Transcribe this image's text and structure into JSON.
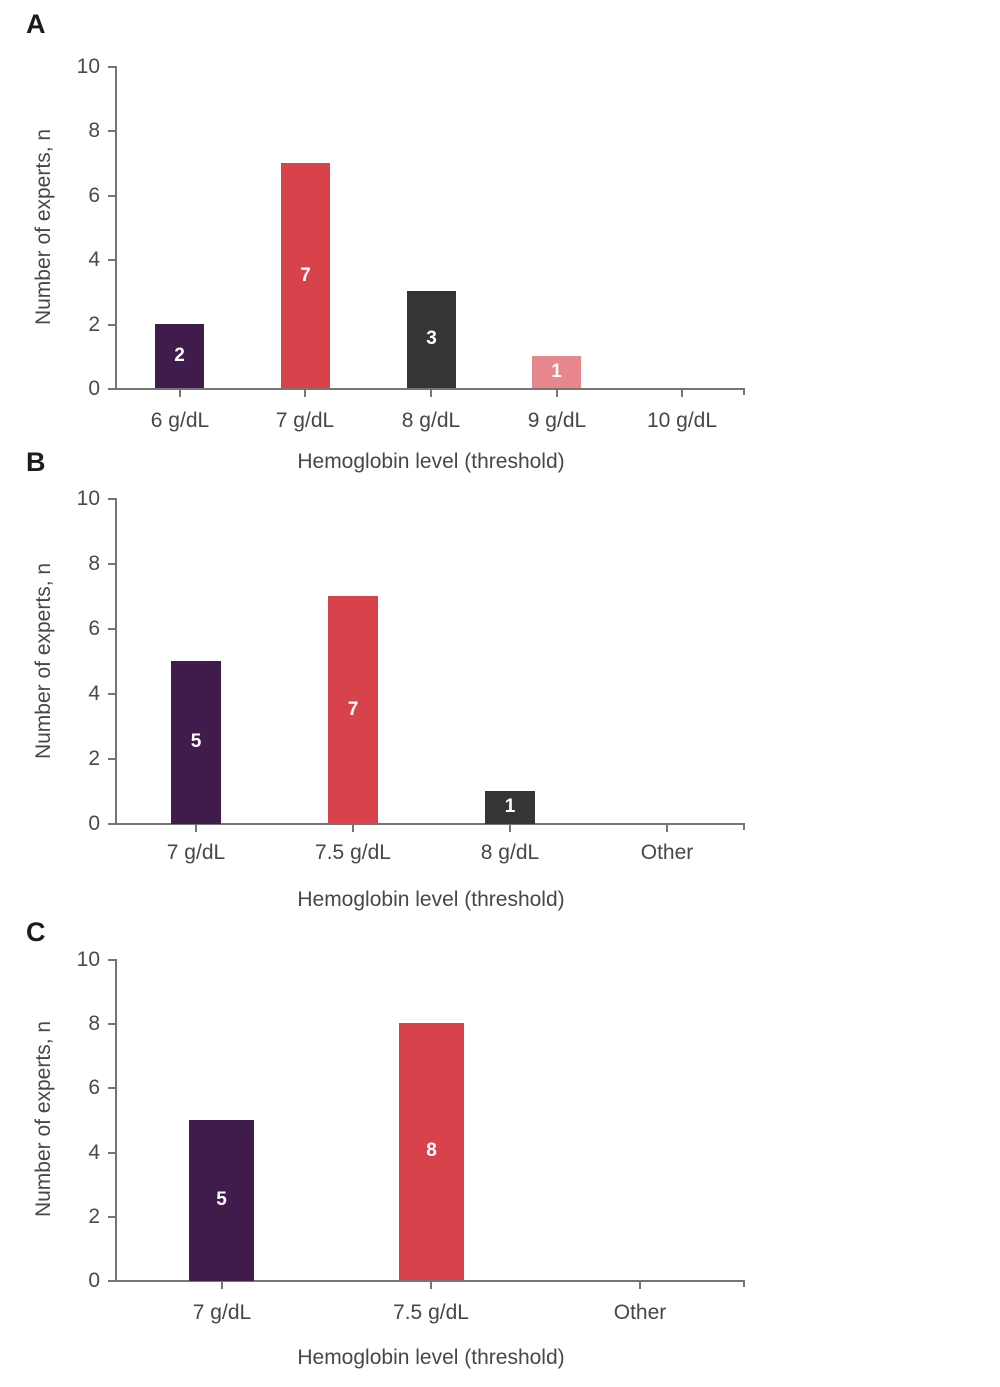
{
  "figure_colors": {
    "purple": "#3f1c4c",
    "red": "#d8434b",
    "charcoal": "#363436",
    "pink": "#e8868d",
    "axis": "#757575",
    "text": "#474747",
    "bar_label": "#ffffff"
  },
  "chart_data": [
    {
      "panel_label": "A",
      "type": "bar",
      "title": "",
      "xlabel": "Hemoglobin level (threshold)",
      "ylabel": "Number of experts, n",
      "ylim": [
        0,
        10
      ],
      "yticks": [
        0,
        2,
        4,
        6,
        8,
        10
      ],
      "grid": false,
      "legend": "none",
      "categories": [
        "6 g/dL",
        "7 g/dL",
        "8 g/dL",
        "9 g/dL",
        "10 g/dL"
      ],
      "values": [
        2,
        7,
        3,
        1,
        0
      ],
      "bar_labels": [
        "2",
        "7",
        "3",
        "1",
        ""
      ],
      "bar_colors": [
        "#3f1c4c",
        "#d8434b",
        "#363436",
        "#e8868d",
        "#cccccc"
      ]
    },
    {
      "panel_label": "B",
      "type": "bar",
      "title": "",
      "xlabel": "Hemoglobin level (threshold)",
      "ylabel": "Number of experts, n",
      "ylim": [
        0,
        10
      ],
      "yticks": [
        0,
        2,
        4,
        6,
        8,
        10
      ],
      "grid": false,
      "legend": "none",
      "categories": [
        "7 g/dL",
        "7.5 g/dL",
        "8 g/dL",
        "Other"
      ],
      "values": [
        5,
        7,
        1,
        0
      ],
      "bar_labels": [
        "5",
        "7",
        "1",
        ""
      ],
      "bar_colors": [
        "#3f1c4c",
        "#d8434b",
        "#363436",
        "#cccccc"
      ]
    },
    {
      "panel_label": "C",
      "type": "bar",
      "title": "",
      "xlabel": "Hemoglobin level (threshold)",
      "ylabel": "Number of experts, n",
      "ylim": [
        0,
        10
      ],
      "yticks": [
        0,
        2,
        4,
        6,
        8,
        10
      ],
      "grid": false,
      "legend": "none",
      "categories": [
        "7 g/dL",
        "7.5 g/dL",
        "Other"
      ],
      "values": [
        5,
        8,
        0
      ],
      "bar_labels": [
        "5",
        "8",
        ""
      ],
      "bar_colors": [
        "#3f1c4c",
        "#d8434b",
        "#cccccc"
      ]
    }
  ]
}
